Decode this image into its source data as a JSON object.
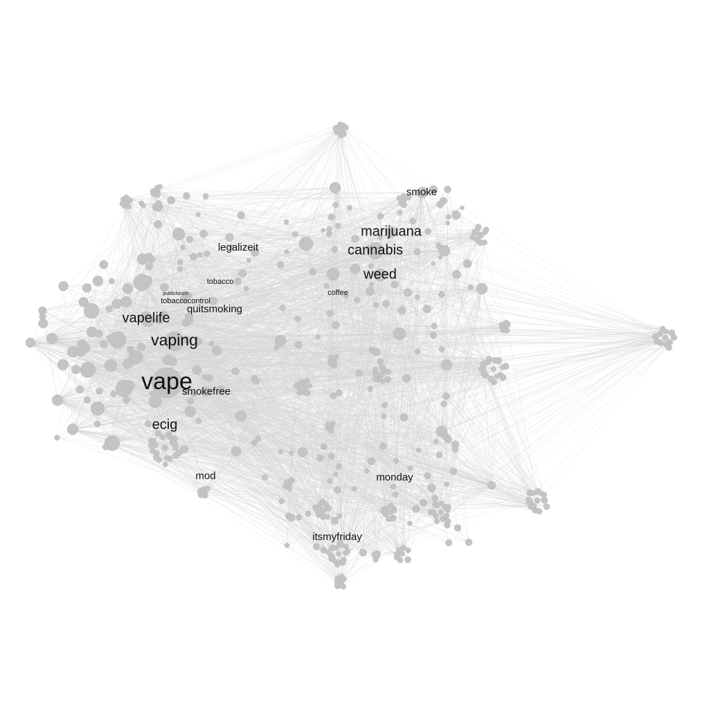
{
  "colors": {
    "background": "#ffffff",
    "node_fill": "#c4c4c4",
    "edge": "#d6d6d6",
    "label": "#111111"
  },
  "labels": {
    "vape": "vape",
    "vaping": "vaping",
    "vapelife": "vapelife",
    "ecig": "ecig",
    "smokefree": "smokefree",
    "quitsmoking": "quitsmoking",
    "tobaccocontrol": "tobaccocontrol",
    "publichealth": "publichealth",
    "tobacco": "tobacco",
    "legalizeit": "legalizeit",
    "marijuana": "marijuana",
    "cannabis": "cannabis",
    "weed": "weed",
    "coffee": "coffee",
    "smoke": "smoke",
    "mod": "mod",
    "monday": "monday",
    "itsmyfriday": "itsmyfriday"
  }
}
